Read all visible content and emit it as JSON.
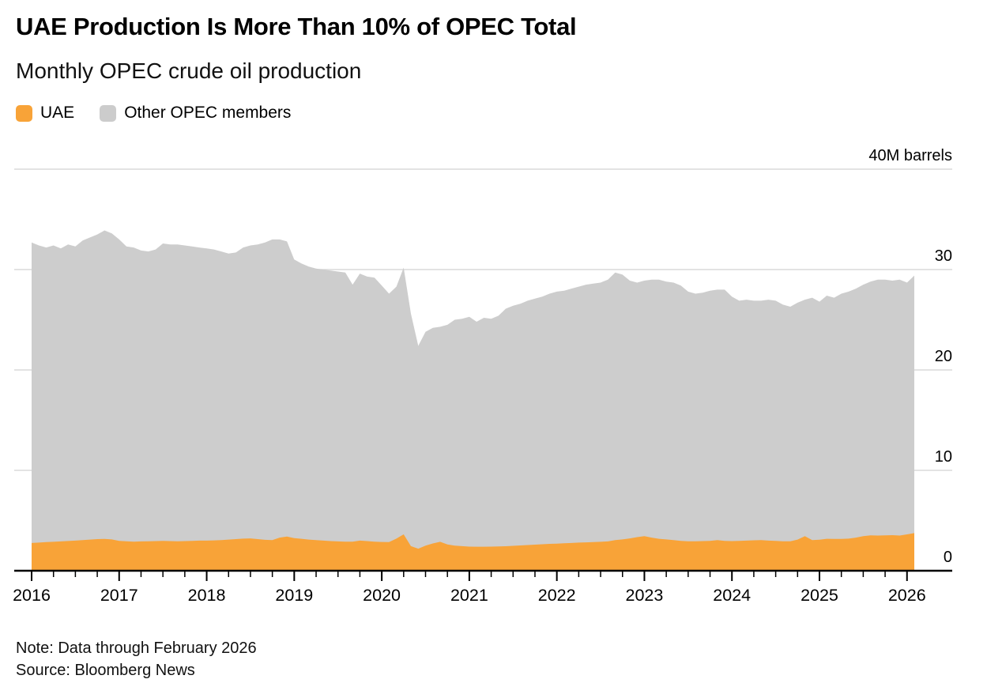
{
  "header": {
    "title": "UAE Production Is More Than 10% of OPEC Total",
    "subtitle": "Monthly OPEC crude oil production"
  },
  "legend": [
    {
      "label": "UAE",
      "color": "#F8A338"
    },
    {
      "label": "Other OPEC members",
      "color": "#CCCCCC"
    }
  ],
  "footer": {
    "note": "Note: Data through February 2026",
    "source": "Source: Bloomberg News"
  },
  "chart_data": {
    "type": "area",
    "stacked": true,
    "title": "UAE Production Is More Than 10% of OPEC Total",
    "subtitle": "Monthly OPEC crude oil production",
    "x_start": "2016-01",
    "x_end": "2026-02",
    "x_frequency": "monthly",
    "x_tick_labels": [
      "2016",
      "2017",
      "2018",
      "2019",
      "2020",
      "2021",
      "2022",
      "2023",
      "2024",
      "2025",
      "2026"
    ],
    "y_ticks": [
      0,
      10,
      20,
      30,
      40
    ],
    "y_tick_labels": [
      "0",
      "10",
      "20",
      "30",
      "40M barrels"
    ],
    "ylim": [
      0,
      40
    ],
    "unit": "M barrels",
    "grid": true,
    "legend_position": "top-left",
    "colors": {
      "uae": "#F8A338",
      "other": "#CDCDCD",
      "grid": "#DADADA",
      "axis": "#000000"
    },
    "series": [
      {
        "name": "UAE",
        "values": [
          2.76,
          2.8,
          2.85,
          2.88,
          2.92,
          2.96,
          3.0,
          3.05,
          3.1,
          3.15,
          3.17,
          3.12,
          2.98,
          2.93,
          2.9,
          2.92,
          2.93,
          2.95,
          2.97,
          2.95,
          2.93,
          2.95,
          2.98,
          3.0,
          3.0,
          3.02,
          3.05,
          3.1,
          3.15,
          3.2,
          3.22,
          3.15,
          3.08,
          3.05,
          3.3,
          3.4,
          3.25,
          3.18,
          3.1,
          3.05,
          3.0,
          2.95,
          2.92,
          2.9,
          2.9,
          3.0,
          2.95,
          2.9,
          2.87,
          2.86,
          3.2,
          3.62,
          2.45,
          2.2,
          2.5,
          2.72,
          2.88,
          2.62,
          2.5,
          2.45,
          2.4,
          2.39,
          2.39,
          2.4,
          2.42,
          2.44,
          2.48,
          2.52,
          2.56,
          2.6,
          2.64,
          2.68,
          2.7,
          2.73,
          2.76,
          2.8,
          2.83,
          2.86,
          2.88,
          2.92,
          3.05,
          3.12,
          3.22,
          3.35,
          3.45,
          3.3,
          3.18,
          3.12,
          3.05,
          2.98,
          2.93,
          2.93,
          2.95,
          2.97,
          3.05,
          2.98,
          2.95,
          2.97,
          3.0,
          3.03,
          3.05,
          3.0,
          2.97,
          2.94,
          2.93,
          3.1,
          3.44,
          3.05,
          3.09,
          3.18,
          3.17,
          3.17,
          3.2,
          3.3,
          3.45,
          3.52,
          3.5,
          3.52,
          3.54,
          3.5,
          3.62,
          3.75
        ]
      },
      {
        "name": "Other OPEC members",
        "values": [
          29.94,
          29.6,
          29.35,
          29.52,
          29.18,
          29.54,
          29.3,
          29.85,
          30.1,
          30.35,
          30.73,
          30.48,
          30.02,
          29.37,
          29.3,
          28.98,
          28.87,
          29.05,
          29.63,
          29.55,
          29.57,
          29.45,
          29.32,
          29.2,
          29.1,
          28.98,
          28.75,
          28.5,
          28.55,
          29.0,
          29.18,
          29.35,
          29.62,
          29.95,
          29.7,
          29.4,
          27.75,
          27.42,
          27.2,
          27.05,
          27.0,
          26.95,
          26.88,
          26.8,
          25.6,
          26.6,
          26.35,
          26.3,
          25.53,
          24.74,
          25.1,
          26.58,
          23.15,
          20.2,
          21.3,
          21.48,
          21.42,
          21.88,
          22.5,
          22.65,
          22.9,
          22.41,
          22.81,
          22.7,
          22.98,
          23.66,
          23.92,
          24.08,
          24.34,
          24.5,
          24.66,
          24.92,
          25.1,
          25.17,
          25.34,
          25.5,
          25.67,
          25.74,
          25.82,
          26.08,
          26.65,
          26.38,
          25.68,
          25.35,
          25.45,
          25.7,
          25.82,
          25.68,
          25.65,
          25.42,
          24.87,
          24.67,
          24.75,
          24.93,
          24.95,
          25.02,
          24.35,
          23.93,
          24.0,
          23.87,
          23.85,
          24.0,
          23.93,
          23.56,
          23.37,
          23.6,
          23.56,
          24.15,
          23.71,
          24.22,
          24.03,
          24.43,
          24.6,
          24.8,
          25.05,
          25.28,
          25.5,
          25.48,
          25.36,
          25.5,
          25.08,
          25.65
        ]
      }
    ]
  }
}
